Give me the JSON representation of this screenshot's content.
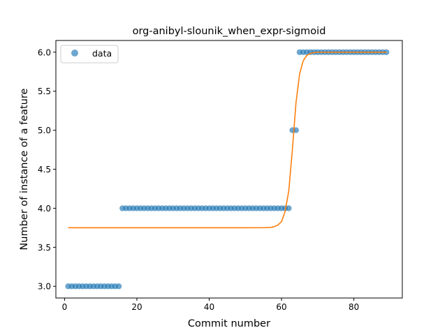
{
  "chart_data": {
    "type": "scatter",
    "title": "org-anibyl-slounik_when_expr-sigmoid",
    "xlabel": "Commit number",
    "ylabel": "Number of instance of a feature",
    "xlim": [
      -2.4,
      93.4
    ],
    "ylim": [
      2.85,
      6.15
    ],
    "xticks": [
      0,
      20,
      40,
      60,
      80
    ],
    "yticks": [
      3.0,
      3.5,
      4.0,
      4.5,
      5.0,
      5.5,
      6.0
    ],
    "ytick_labels": [
      "3.0",
      "3.5",
      "4.0",
      "4.5",
      "5.0",
      "5.5",
      "6.0"
    ],
    "grid": false,
    "legend_position": "top-left",
    "series": [
      {
        "name": "data",
        "kind": "scatter",
        "color": "#1f77b4",
        "x": [
          1,
          2,
          3,
          4,
          5,
          6,
          7,
          8,
          9,
          10,
          11,
          12,
          13,
          14,
          15,
          16,
          17,
          18,
          19,
          20,
          21,
          22,
          23,
          24,
          25,
          26,
          27,
          28,
          29,
          30,
          31,
          32,
          33,
          34,
          35,
          36,
          37,
          38,
          39,
          40,
          41,
          42,
          43,
          44,
          45,
          46,
          47,
          48,
          49,
          50,
          51,
          52,
          53,
          54,
          55,
          56,
          57,
          58,
          59,
          60,
          61,
          62,
          63,
          64,
          65,
          66,
          67,
          68,
          69,
          70,
          71,
          72,
          73,
          74,
          75,
          76,
          77,
          78,
          79,
          80,
          81,
          82,
          83,
          84,
          85,
          86,
          87,
          88,
          89
        ],
        "y": [
          3,
          3,
          3,
          3,
          3,
          3,
          3,
          3,
          3,
          3,
          3,
          3,
          3,
          3,
          3,
          4,
          4,
          4,
          4,
          4,
          4,
          4,
          4,
          4,
          4,
          4,
          4,
          4,
          4,
          4,
          4,
          4,
          4,
          4,
          4,
          4,
          4,
          4,
          4,
          4,
          4,
          4,
          4,
          4,
          4,
          4,
          4,
          4,
          4,
          4,
          4,
          4,
          4,
          4,
          4,
          4,
          4,
          4,
          4,
          4,
          4,
          4,
          5,
          5,
          6,
          6,
          6,
          6,
          6,
          6,
          6,
          6,
          6,
          6,
          6,
          6,
          6,
          6,
          6,
          6,
          6,
          6,
          6,
          6,
          6,
          6,
          6,
          6,
          6
        ]
      },
      {
        "kind": "line",
        "color": "#ff7f0e",
        "x": [
          1,
          10,
          20,
          30,
          40,
          50,
          55,
          57,
          58,
          59,
          60,
          61,
          62,
          63,
          64,
          65,
          66,
          67,
          68,
          69,
          70,
          75,
          80,
          85,
          89
        ],
        "y": [
          3.75,
          3.75,
          3.75,
          3.75,
          3.75,
          3.75,
          3.751,
          3.755,
          3.765,
          3.785,
          3.83,
          3.96,
          4.22,
          4.75,
          5.35,
          5.72,
          5.89,
          5.96,
          5.985,
          5.995,
          5.999,
          6.0,
          6.0,
          6.0,
          6.0
        ]
      }
    ]
  }
}
